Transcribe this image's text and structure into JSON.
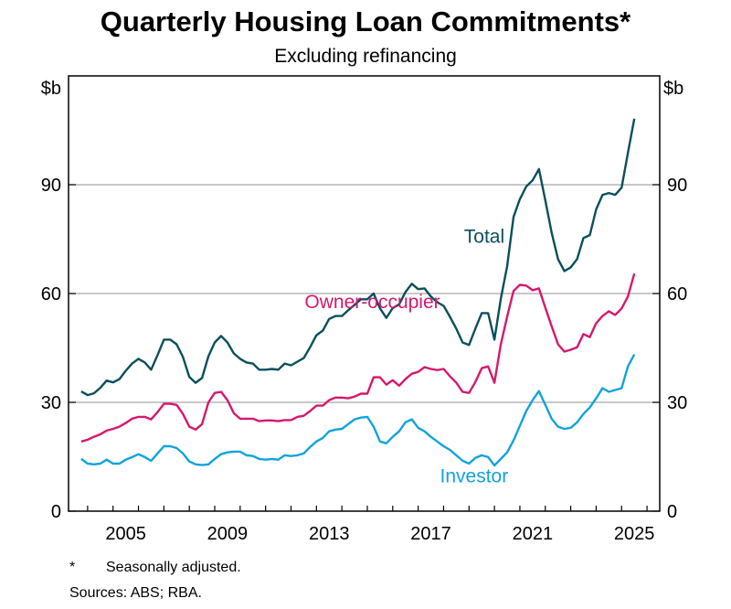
{
  "title": "Quarterly Housing Loan Commitments*",
  "subtitle": "Excluding refinancing",
  "footnotes": {
    "marker": "*",
    "note": "Seasonally adjusted.",
    "sources": "Sources: ABS; RBA."
  },
  "chart_data": {
    "type": "line",
    "title": "Quarterly Housing Loan Commitments*",
    "subtitle": "Excluding refinancing",
    "ylabel_left": "$b",
    "ylabel_right": "$b",
    "ylim": [
      0,
      120
    ],
    "xlim": [
      2003.25,
      2026.5
    ],
    "x_start": 2003.75,
    "x_step": 0.25,
    "yticks": [
      0,
      30,
      60,
      90
    ],
    "xticks": [
      2005,
      2009,
      2013,
      2017,
      2021,
      2025
    ],
    "grid": true,
    "series": [
      {
        "name": "Total",
        "color": "#0b4f5c",
        "values": [
          33,
          32,
          32.5,
          34,
          36,
          35.5,
          36.4,
          38.7,
          40.7,
          42,
          41,
          39,
          43,
          47.3,
          47.3,
          46,
          42.5,
          37,
          35.4,
          36.7,
          42.7,
          46.5,
          48.3,
          46.5,
          43.5,
          42,
          41,
          40.7,
          39,
          39,
          39.2,
          39,
          40.7,
          40.2,
          41.2,
          42.2,
          45.2,
          48.5,
          49.8,
          53,
          53.8,
          53.8,
          55.4,
          56.9,
          58.4,
          58.4,
          60,
          55.9,
          53.3,
          56,
          57,
          60.4,
          62.7,
          61.2,
          61.4,
          59.2,
          57.6,
          56.6,
          53.6,
          50.3,
          46.5,
          45.8,
          50.3,
          54.6,
          54.6,
          47.3,
          58.6,
          67.5,
          81.1,
          86,
          89.5,
          91.2,
          94.3,
          85.7,
          76.8,
          69.5,
          66.2,
          67.2,
          69.5,
          75.3,
          76.1,
          83.2,
          87.2,
          87.7,
          87.2,
          89.2,
          98.8,
          108.2
        ]
      },
      {
        "name": "Owner-occupier",
        "color": "#d6186c",
        "values": [
          19.2,
          19.7,
          20.5,
          21.2,
          22.2,
          22.7,
          23.3,
          24.3,
          25.5,
          26,
          26,
          25.3,
          27.3,
          29.6,
          29.6,
          29.3,
          26.8,
          23.3,
          22.5,
          24,
          30,
          32.6,
          32.9,
          30.6,
          27,
          25.5,
          25.5,
          25.5,
          24.8,
          25,
          25,
          24.8,
          25.1,
          25.1,
          26,
          26.3,
          27.6,
          29.1,
          29.1,
          30.6,
          31.3,
          31.3,
          31.1,
          31.6,
          32.4,
          32.4,
          36.9,
          36.9,
          34.9,
          36.1,
          34.6,
          36.4,
          37.9,
          38.4,
          39.7,
          39.2,
          38.9,
          39.2,
          37.2,
          35.4,
          32.9,
          32.6,
          35.6,
          39.4,
          39.9,
          35.4,
          46,
          53.6,
          60.7,
          62.4,
          62.2,
          60.9,
          61.4,
          56.1,
          51,
          46,
          44,
          44.5,
          45.2,
          48.8,
          48,
          51.8,
          53.8,
          55.1,
          54.1,
          55.9,
          59.2,
          65.5
        ]
      },
      {
        "name": "Investor",
        "color": "#11a3dc",
        "values": [
          14.4,
          13.1,
          12.9,
          13.1,
          14.2,
          13.1,
          13.1,
          14.2,
          14.9,
          15.7,
          14.9,
          13.9,
          15.9,
          17.9,
          17.9,
          17.4,
          15.9,
          13.7,
          12.9,
          12.7,
          12.9,
          14.4,
          15.7,
          16.2,
          16.4,
          16.4,
          15.4,
          15.2,
          14.4,
          14.2,
          14.4,
          14.2,
          15.4,
          15.2,
          15.4,
          15.9,
          17.7,
          19.2,
          20.2,
          22,
          22.5,
          22.7,
          24,
          25.3,
          25.8,
          26,
          23.3,
          19.2,
          18.7,
          20.5,
          22,
          24.5,
          25.3,
          23,
          22,
          20.5,
          19.2,
          17.9,
          16.9,
          15.4,
          13.9,
          13.1,
          14.7,
          15.4,
          14.9,
          12.6,
          14.4,
          16.2,
          19.5,
          23.5,
          27.6,
          30.6,
          33.1,
          29.3,
          25.5,
          23.3,
          22.7,
          23,
          24.5,
          26.8,
          28.6,
          31.1,
          33.9,
          32.9,
          33.4,
          33.9,
          39.9,
          43.2
        ]
      }
    ]
  }
}
